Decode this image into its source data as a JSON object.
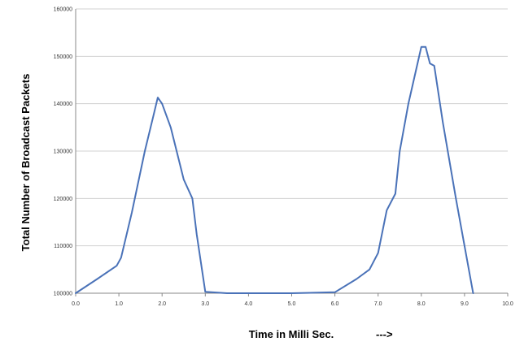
{
  "chart_data": {
    "type": "line",
    "title": "",
    "xlabel": "Time in Milli Sec.",
    "xlabel_arrow": "--->",
    "ylabel": "Total Number of Broadcast Packets",
    "xlim": [
      0,
      10
    ],
    "ylim": [
      100000,
      160000
    ],
    "grid": "horizontal",
    "x_ticks": [
      "0.0",
      "1.0",
      "2.0",
      "3.0",
      "4.0",
      "5.0",
      "6.0",
      "7.0",
      "8.0",
      "9.0",
      "10.0"
    ],
    "y_ticks": [
      "100000",
      "110000",
      "120000",
      "130000",
      "140000",
      "150000",
      "160000"
    ],
    "tick_values_x": [
      0,
      1,
      2,
      3,
      4,
      5,
      6,
      7,
      8,
      9,
      10
    ],
    "tick_values_y": [
      100000,
      110000,
      120000,
      130000,
      140000,
      150000,
      160000
    ],
    "series": [
      {
        "color": "#4a72b8",
        "x": [
          0.0,
          0.5,
          0.95,
          1.05,
          1.3,
          1.6,
          1.8,
          1.9,
          2.0,
          2.2,
          2.5,
          2.7,
          2.8,
          3.0,
          3.5,
          4.0,
          5.0,
          6.0,
          6.5,
          6.8,
          7.0,
          7.2,
          7.4,
          7.5,
          7.7,
          7.9,
          8.0,
          8.1,
          8.2,
          8.3,
          8.5,
          8.8,
          9.0,
          9.2
        ],
        "y": [
          100000,
          103000,
          105800,
          107500,
          117000,
          130000,
          137500,
          141300,
          140000,
          135000,
          124000,
          120000,
          112500,
          100300,
          100000,
          100000,
          100000,
          100200,
          103000,
          105000,
          108500,
          117500,
          121000,
          130000,
          140000,
          148000,
          152000,
          152000,
          148500,
          148000,
          136000,
          120000,
          110000,
          100000
        ]
      }
    ]
  },
  "axes": {
    "axis_color": "#888888",
    "grid_color": "#d0d0d0",
    "ylabel": "Total Number of Broadcast Packets",
    "xlabel": "Time in Milli Sec.",
    "xlabel_arrow": "--->"
  }
}
